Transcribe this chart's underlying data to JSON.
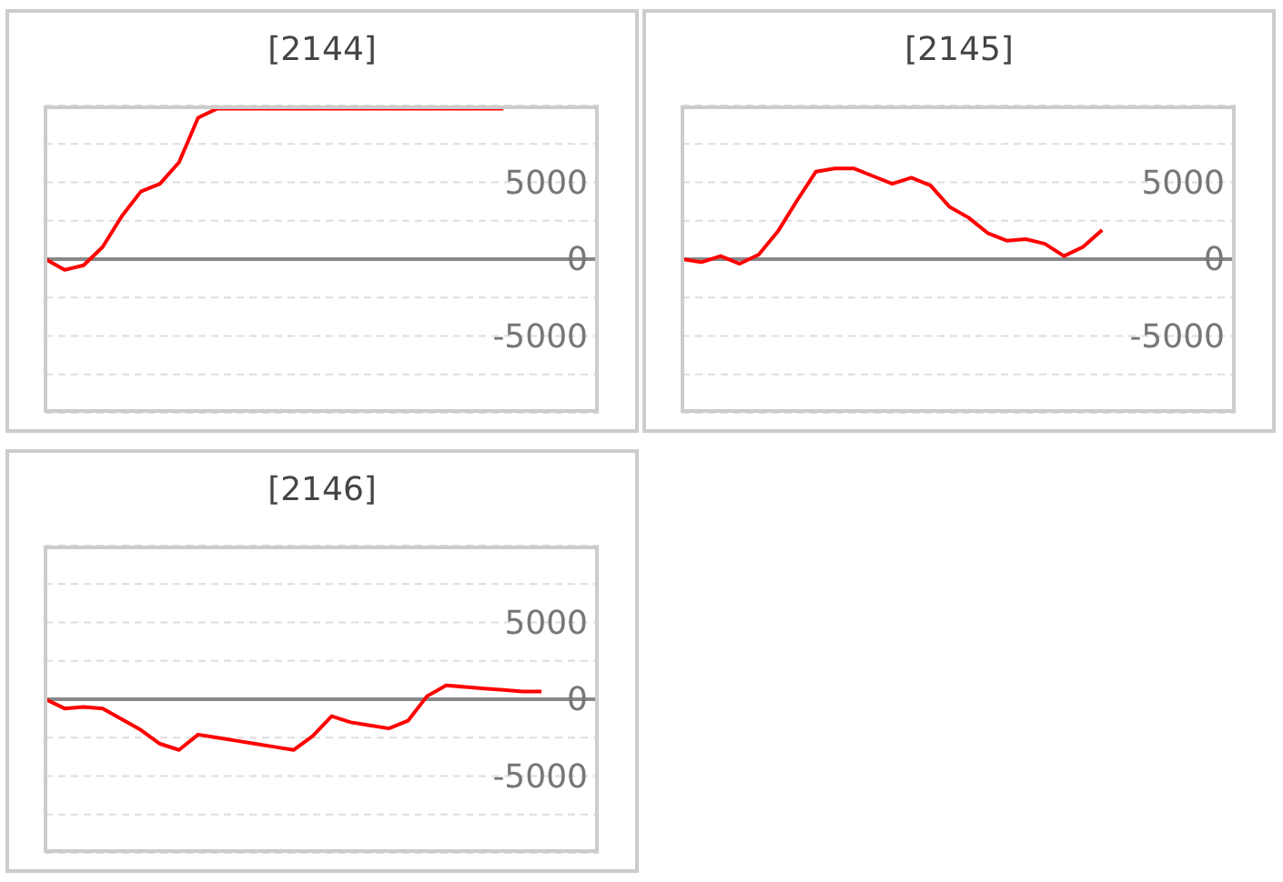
{
  "chart_data": [
    {
      "type": "line",
      "title": "[2144]",
      "categories": [
        null,
        null,
        null,
        null,
        null,
        null,
        null,
        null,
        null,
        null,
        null,
        null,
        null,
        null,
        null,
        null,
        null,
        null,
        null,
        null,
        null,
        null,
        null,
        null,
        null,
        null,
        null,
        null,
        null,
        null
      ],
      "values": [
        0,
        -700,
        -400,
        800,
        2800,
        4400,
        4900,
        6300,
        9200,
        9800,
        9800,
        9800,
        9800,
        9800,
        9800,
        9800,
        9800,
        9800,
        9800,
        9800,
        9800,
        9800,
        9800,
        9800,
        9800,
        null,
        null,
        null,
        null,
        null
      ],
      "color": "#ff0000",
      "ylim": [
        -10000,
        10000
      ],
      "yticks": [
        {
          "value": 7500,
          "label": null
        },
        5000,
        {
          "value": 2500,
          "label": null
        },
        0,
        {
          "value": -2500,
          "label": null
        },
        -5000,
        {
          "value": -7500,
          "label": null
        }
      ],
      "grid": "y",
      "tick_labels": "y",
      "marker": "none",
      "ref_lines": [
        {
          "axis": "y",
          "value": 0,
          "color": "#888888"
        }
      ]
    },
    {
      "type": "line",
      "title": "[2145]",
      "categories": [
        null,
        null,
        null,
        null,
        null,
        null,
        null,
        null,
        null,
        null,
        null,
        null,
        null,
        null,
        null,
        null,
        null,
        null,
        null,
        null,
        null,
        null,
        null,
        null,
        null,
        null,
        null,
        null,
        null,
        null
      ],
      "values": [
        0,
        -200,
        200,
        -300,
        300,
        1800,
        3800,
        5700,
        5900,
        5900,
        5400,
        4900,
        5300,
        4800,
        3400,
        2700,
        1700,
        1200,
        1300,
        1000,
        200,
        800,
        1900,
        null,
        null,
        null,
        null,
        null,
        null,
        null
      ],
      "color": "#ff0000",
      "ylim": [
        -10000,
        10000
      ],
      "yticks": [
        {
          "value": 7500,
          "label": null
        },
        5000,
        {
          "value": 2500,
          "label": null
        },
        0,
        {
          "value": -2500,
          "label": null
        },
        -5000,
        {
          "value": -7500,
          "label": null
        }
      ],
      "grid": "y",
      "tick_labels": "y",
      "marker": "none",
      "ref_lines": [
        {
          "axis": "y",
          "value": 0,
          "color": "#888888"
        }
      ]
    },
    {
      "type": "line",
      "title": "[2146]",
      "categories": [
        null,
        null,
        null,
        null,
        null,
        null,
        null,
        null,
        null,
        null,
        null,
        null,
        null,
        null,
        null,
        null,
        null,
        null,
        null,
        null,
        null,
        null,
        null,
        null,
        null,
        null,
        null,
        null,
        null,
        null
      ],
      "values": [
        0,
        -600,
        -500,
        -600,
        -1300,
        -2000,
        -2900,
        -3300,
        -2300,
        -2500,
        -2700,
        -2900,
        -3100,
        -3300,
        -2400,
        -1100,
        -1500,
        -1700,
        -1900,
        -1400,
        200,
        900,
        800,
        700,
        600,
        500,
        500,
        null,
        null,
        null
      ],
      "color": "#ff0000",
      "ylim": [
        -10000,
        10000
      ],
      "yticks": [
        {
          "value": 7500,
          "label": null
        },
        5000,
        {
          "value": 2500,
          "label": null
        },
        0,
        {
          "value": -2500,
          "label": null
        },
        -5000,
        {
          "value": -7500,
          "label": null
        }
      ],
      "grid": "y",
      "tick_labels": "y",
      "marker": "none",
      "ref_lines": [
        {
          "axis": "y",
          "value": 0,
          "color": "#888888"
        }
      ]
    }
  ]
}
